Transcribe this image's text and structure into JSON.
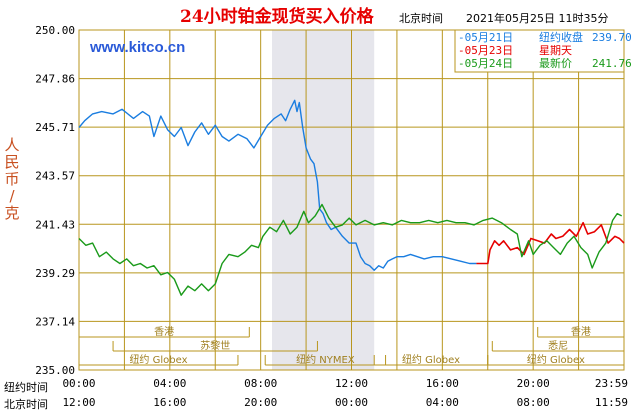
{
  "header": {
    "title": "24小时铂金现货买入价格",
    "beijing_time_label": "北京时间",
    "timestamp": "2021年05月25日 11时35分",
    "url": "www.kitco.cn"
  },
  "legend": {
    "items": [
      {
        "date": "05月21日",
        "label": "纽约收盘",
        "value": "239.70",
        "color": "#1a7de0"
      },
      {
        "date": "05月23日",
        "label": "星期天",
        "value": "",
        "color": "#e60000"
      },
      {
        "date": "05月24日",
        "label": "最新价",
        "value": "241.76",
        "color": "#1a9a1a"
      }
    ]
  },
  "colors": {
    "grid": "#b8961e",
    "frame": "#b8961e",
    "shade": "#e6e6ec",
    "blue": "#1a7de0",
    "red": "#e60000",
    "green": "#1a9a1a"
  },
  "chart_data": {
    "type": "line",
    "ylabel": "人民币/克",
    "ylim": [
      235.0,
      250.0
    ],
    "yticks": [
      "250.00",
      "247.86",
      "245.71",
      "243.57",
      "241.43",
      "239.29",
      "237.14",
      "235.00"
    ],
    "xlim": [
      0,
      24
    ],
    "ny_time_label": "纽约时间",
    "bj_time_label": "北京时间",
    "ny_ticks": [
      "00:00",
      "04:00",
      "08:00",
      "12:00",
      "16:00",
      "20:00",
      "23:59"
    ],
    "bj_ticks": [
      "12:00",
      "16:00",
      "20:00",
      "00:00",
      "04:00",
      "08:00",
      "11:59"
    ],
    "shaded_hours": [
      8.5,
      13.0
    ],
    "sessions": [
      {
        "label": "香港",
        "start": 0,
        "end": 7.5,
        "row": 1
      },
      {
        "label": "苏黎世",
        "start": 1.5,
        "end": 10.5,
        "row": 2
      },
      {
        "label": "纽约 Globex",
        "start": 0,
        "end": 7.0,
        "row": 3
      },
      {
        "label": "纽约 NYMEX",
        "start": 8.2,
        "end": 13.5,
        "row": 3
      },
      {
        "label": "纽约 Globex",
        "start": 13.0,
        "end": 18.0,
        "row": 3
      },
      {
        "label": "香港",
        "start": 20.2,
        "end": 24,
        "row": 1
      },
      {
        "label": "悉尼",
        "start": 18.2,
        "end": 24,
        "row": 2
      },
      {
        "label": "纽约 Globex",
        "start": 18.0,
        "end": 24,
        "row": 3
      }
    ],
    "series": [
      {
        "name": "05月21日",
        "color": "#1a7de0",
        "points": [
          [
            0,
            245.7
          ],
          [
            0.25,
            246.0
          ],
          [
            0.6,
            246.3
          ],
          [
            1.0,
            246.4
          ],
          [
            1.5,
            246.3
          ],
          [
            1.9,
            246.5
          ],
          [
            2.4,
            246.1
          ],
          [
            2.8,
            246.4
          ],
          [
            3.1,
            246.2
          ],
          [
            3.3,
            245.3
          ],
          [
            3.6,
            246.2
          ],
          [
            3.9,
            245.6
          ],
          [
            4.2,
            245.3
          ],
          [
            4.5,
            245.7
          ],
          [
            4.8,
            244.9
          ],
          [
            5.1,
            245.5
          ],
          [
            5.4,
            245.9
          ],
          [
            5.7,
            245.4
          ],
          [
            6.0,
            245.8
          ],
          [
            6.3,
            245.3
          ],
          [
            6.6,
            245.1
          ],
          [
            7.0,
            245.4
          ],
          [
            7.4,
            245.2
          ],
          [
            7.7,
            244.8
          ],
          [
            8.0,
            245.3
          ],
          [
            8.3,
            245.8
          ],
          [
            8.6,
            246.1
          ],
          [
            8.9,
            246.3
          ],
          [
            9.1,
            246.0
          ],
          [
            9.3,
            246.5
          ],
          [
            9.5,
            246.9
          ],
          [
            9.6,
            246.4
          ],
          [
            9.7,
            246.8
          ],
          [
            9.85,
            245.7
          ],
          [
            10.0,
            244.8
          ],
          [
            10.2,
            244.3
          ],
          [
            10.35,
            244.1
          ],
          [
            10.5,
            243.3
          ],
          [
            10.6,
            242.1
          ],
          [
            10.75,
            241.9
          ],
          [
            10.9,
            241.5
          ],
          [
            11.1,
            241.2
          ],
          [
            11.3,
            241.3
          ],
          [
            11.6,
            240.9
          ],
          [
            11.9,
            240.6
          ],
          [
            12.2,
            240.6
          ],
          [
            12.4,
            240.0
          ],
          [
            12.6,
            239.7
          ],
          [
            12.8,
            239.6
          ],
          [
            13.0,
            239.4
          ],
          [
            13.2,
            239.6
          ],
          [
            13.4,
            239.5
          ],
          [
            13.6,
            239.8
          ],
          [
            13.8,
            239.9
          ],
          [
            14.0,
            240.0
          ],
          [
            14.3,
            240.0
          ],
          [
            14.6,
            240.1
          ],
          [
            14.9,
            240.0
          ],
          [
            15.2,
            239.9
          ],
          [
            15.6,
            240.0
          ],
          [
            16.0,
            240.0
          ],
          [
            16.4,
            239.9
          ],
          [
            16.8,
            239.8
          ],
          [
            17.2,
            239.7
          ],
          [
            17.5,
            239.7
          ]
        ]
      },
      {
        "name": "05月23日",
        "color": "#e60000",
        "points": [
          [
            17.5,
            239.7
          ],
          [
            18.0,
            239.7
          ],
          [
            18.1,
            240.3
          ],
          [
            18.3,
            240.7
          ],
          [
            18.5,
            240.5
          ],
          [
            18.7,
            240.7
          ],
          [
            19.0,
            240.3
          ],
          [
            19.3,
            240.4
          ],
          [
            19.6,
            240.1
          ],
          [
            19.9,
            240.8
          ],
          [
            20.2,
            240.7
          ],
          [
            20.5,
            240.6
          ],
          [
            20.8,
            241.0
          ],
          [
            21.0,
            240.8
          ],
          [
            21.3,
            240.9
          ],
          [
            21.6,
            241.2
          ],
          [
            21.9,
            240.9
          ],
          [
            22.2,
            241.5
          ],
          [
            22.4,
            241.0
          ],
          [
            22.7,
            241.1
          ],
          [
            23.0,
            241.4
          ],
          [
            23.3,
            240.6
          ],
          [
            23.6,
            240.9
          ],
          [
            23.8,
            240.8
          ],
          [
            24.0,
            240.6
          ]
        ]
      },
      {
        "name": "05月24日",
        "color": "#1a9a1a",
        "points": [
          [
            0,
            240.8
          ],
          [
            0.3,
            240.5
          ],
          [
            0.6,
            240.6
          ],
          [
            0.9,
            240.0
          ],
          [
            1.2,
            240.2
          ],
          [
            1.5,
            239.9
          ],
          [
            1.8,
            239.7
          ],
          [
            2.1,
            239.9
          ],
          [
            2.4,
            239.6
          ],
          [
            2.7,
            239.7
          ],
          [
            3.0,
            239.5
          ],
          [
            3.3,
            239.6
          ],
          [
            3.6,
            239.2
          ],
          [
            3.9,
            239.3
          ],
          [
            4.2,
            239.0
          ],
          [
            4.5,
            238.3
          ],
          [
            4.8,
            238.7
          ],
          [
            5.1,
            238.5
          ],
          [
            5.4,
            238.8
          ],
          [
            5.7,
            238.5
          ],
          [
            6.0,
            238.8
          ],
          [
            6.3,
            239.7
          ],
          [
            6.6,
            240.1
          ],
          [
            7.0,
            240.0
          ],
          [
            7.3,
            240.2
          ],
          [
            7.6,
            240.5
          ],
          [
            7.9,
            240.4
          ],
          [
            8.1,
            240.9
          ],
          [
            8.4,
            241.3
          ],
          [
            8.7,
            241.1
          ],
          [
            9.0,
            241.6
          ],
          [
            9.3,
            241.0
          ],
          [
            9.6,
            241.3
          ],
          [
            9.9,
            242.0
          ],
          [
            10.1,
            241.5
          ],
          [
            10.4,
            241.8
          ],
          [
            10.7,
            242.3
          ],
          [
            11.0,
            241.7
          ],
          [
            11.3,
            241.3
          ],
          [
            11.6,
            241.4
          ],
          [
            11.9,
            241.7
          ],
          [
            12.2,
            241.4
          ],
          [
            12.6,
            241.6
          ],
          [
            13.0,
            241.4
          ],
          [
            13.4,
            241.5
          ],
          [
            13.8,
            241.4
          ],
          [
            14.2,
            241.6
          ],
          [
            14.6,
            241.5
          ],
          [
            15.0,
            241.5
          ],
          [
            15.4,
            241.6
          ],
          [
            15.8,
            241.5
          ],
          [
            16.2,
            241.6
          ],
          [
            16.6,
            241.5
          ],
          [
            17.0,
            241.5
          ],
          [
            17.4,
            241.4
          ],
          [
            17.8,
            241.6
          ],
          [
            18.2,
            241.7
          ],
          [
            18.6,
            241.5
          ],
          [
            19.0,
            241.2
          ],
          [
            19.3,
            241.0
          ],
          [
            19.5,
            240.0
          ],
          [
            19.8,
            240.7
          ],
          [
            20.0,
            240.1
          ],
          [
            20.3,
            240.5
          ],
          [
            20.6,
            240.7
          ],
          [
            20.9,
            240.4
          ],
          [
            21.2,
            240.1
          ],
          [
            21.5,
            240.6
          ],
          [
            21.8,
            240.9
          ],
          [
            22.1,
            240.4
          ],
          [
            22.4,
            240.1
          ],
          [
            22.6,
            239.5
          ],
          [
            22.9,
            240.2
          ],
          [
            23.2,
            240.6
          ],
          [
            23.5,
            241.6
          ],
          [
            23.7,
            241.9
          ],
          [
            23.9,
            241.8
          ]
        ]
      }
    ]
  }
}
